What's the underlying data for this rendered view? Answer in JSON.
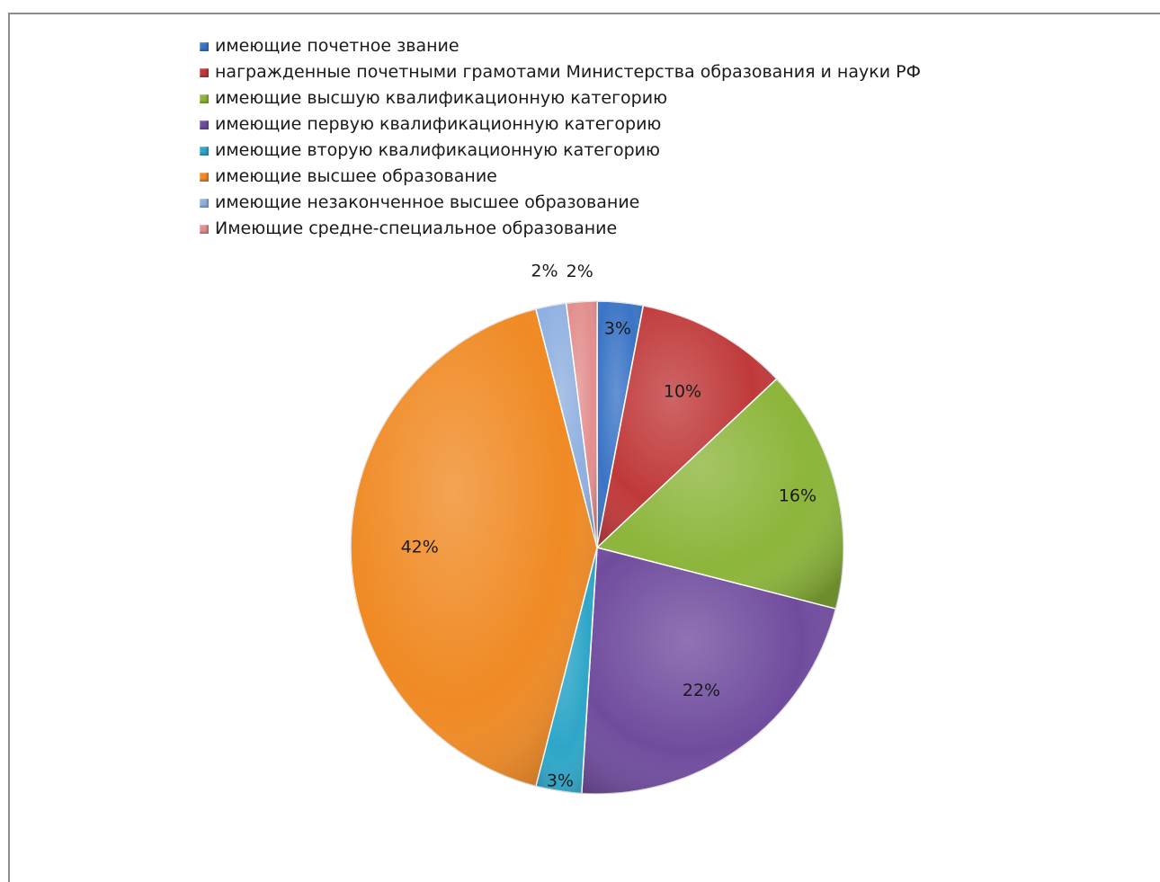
{
  "chart_data": {
    "type": "pie",
    "legend_position": "top",
    "slices": [
      {
        "label": "имеющие почетное звание",
        "value": 3,
        "value_label": "3%",
        "color": "#3a74c6"
      },
      {
        "label": "награжденные почетными грамотами Министерства образования и науки РФ",
        "value": 10,
        "value_label": "10%",
        "color": "#c0393a"
      },
      {
        "label": "имеющие высшую квалификационную категорию",
        "value": 16,
        "value_label": "16%",
        "color": "#8cb53a"
      },
      {
        "label": "имеющие первую квалификационную категорию",
        "value": 22,
        "value_label": "22%",
        "color": "#704c9e"
      },
      {
        "label": "имеющие вторую квалификационную категорию",
        "value": 3,
        "value_label": "3%",
        "color": "#2ea6c8"
      },
      {
        "label": "имеющие высшее образование",
        "value": 42,
        "value_label": "42%",
        "color": "#f08a24"
      },
      {
        "label": "имеющие незаконченное высшее образование",
        "value": 2,
        "value_label": "2%",
        "color": "#8fb0e0"
      },
      {
        "label": "Имеющие средне-специальное образование",
        "value": 2,
        "value_label": "2%",
        "color": "#e38e8e"
      }
    ]
  }
}
